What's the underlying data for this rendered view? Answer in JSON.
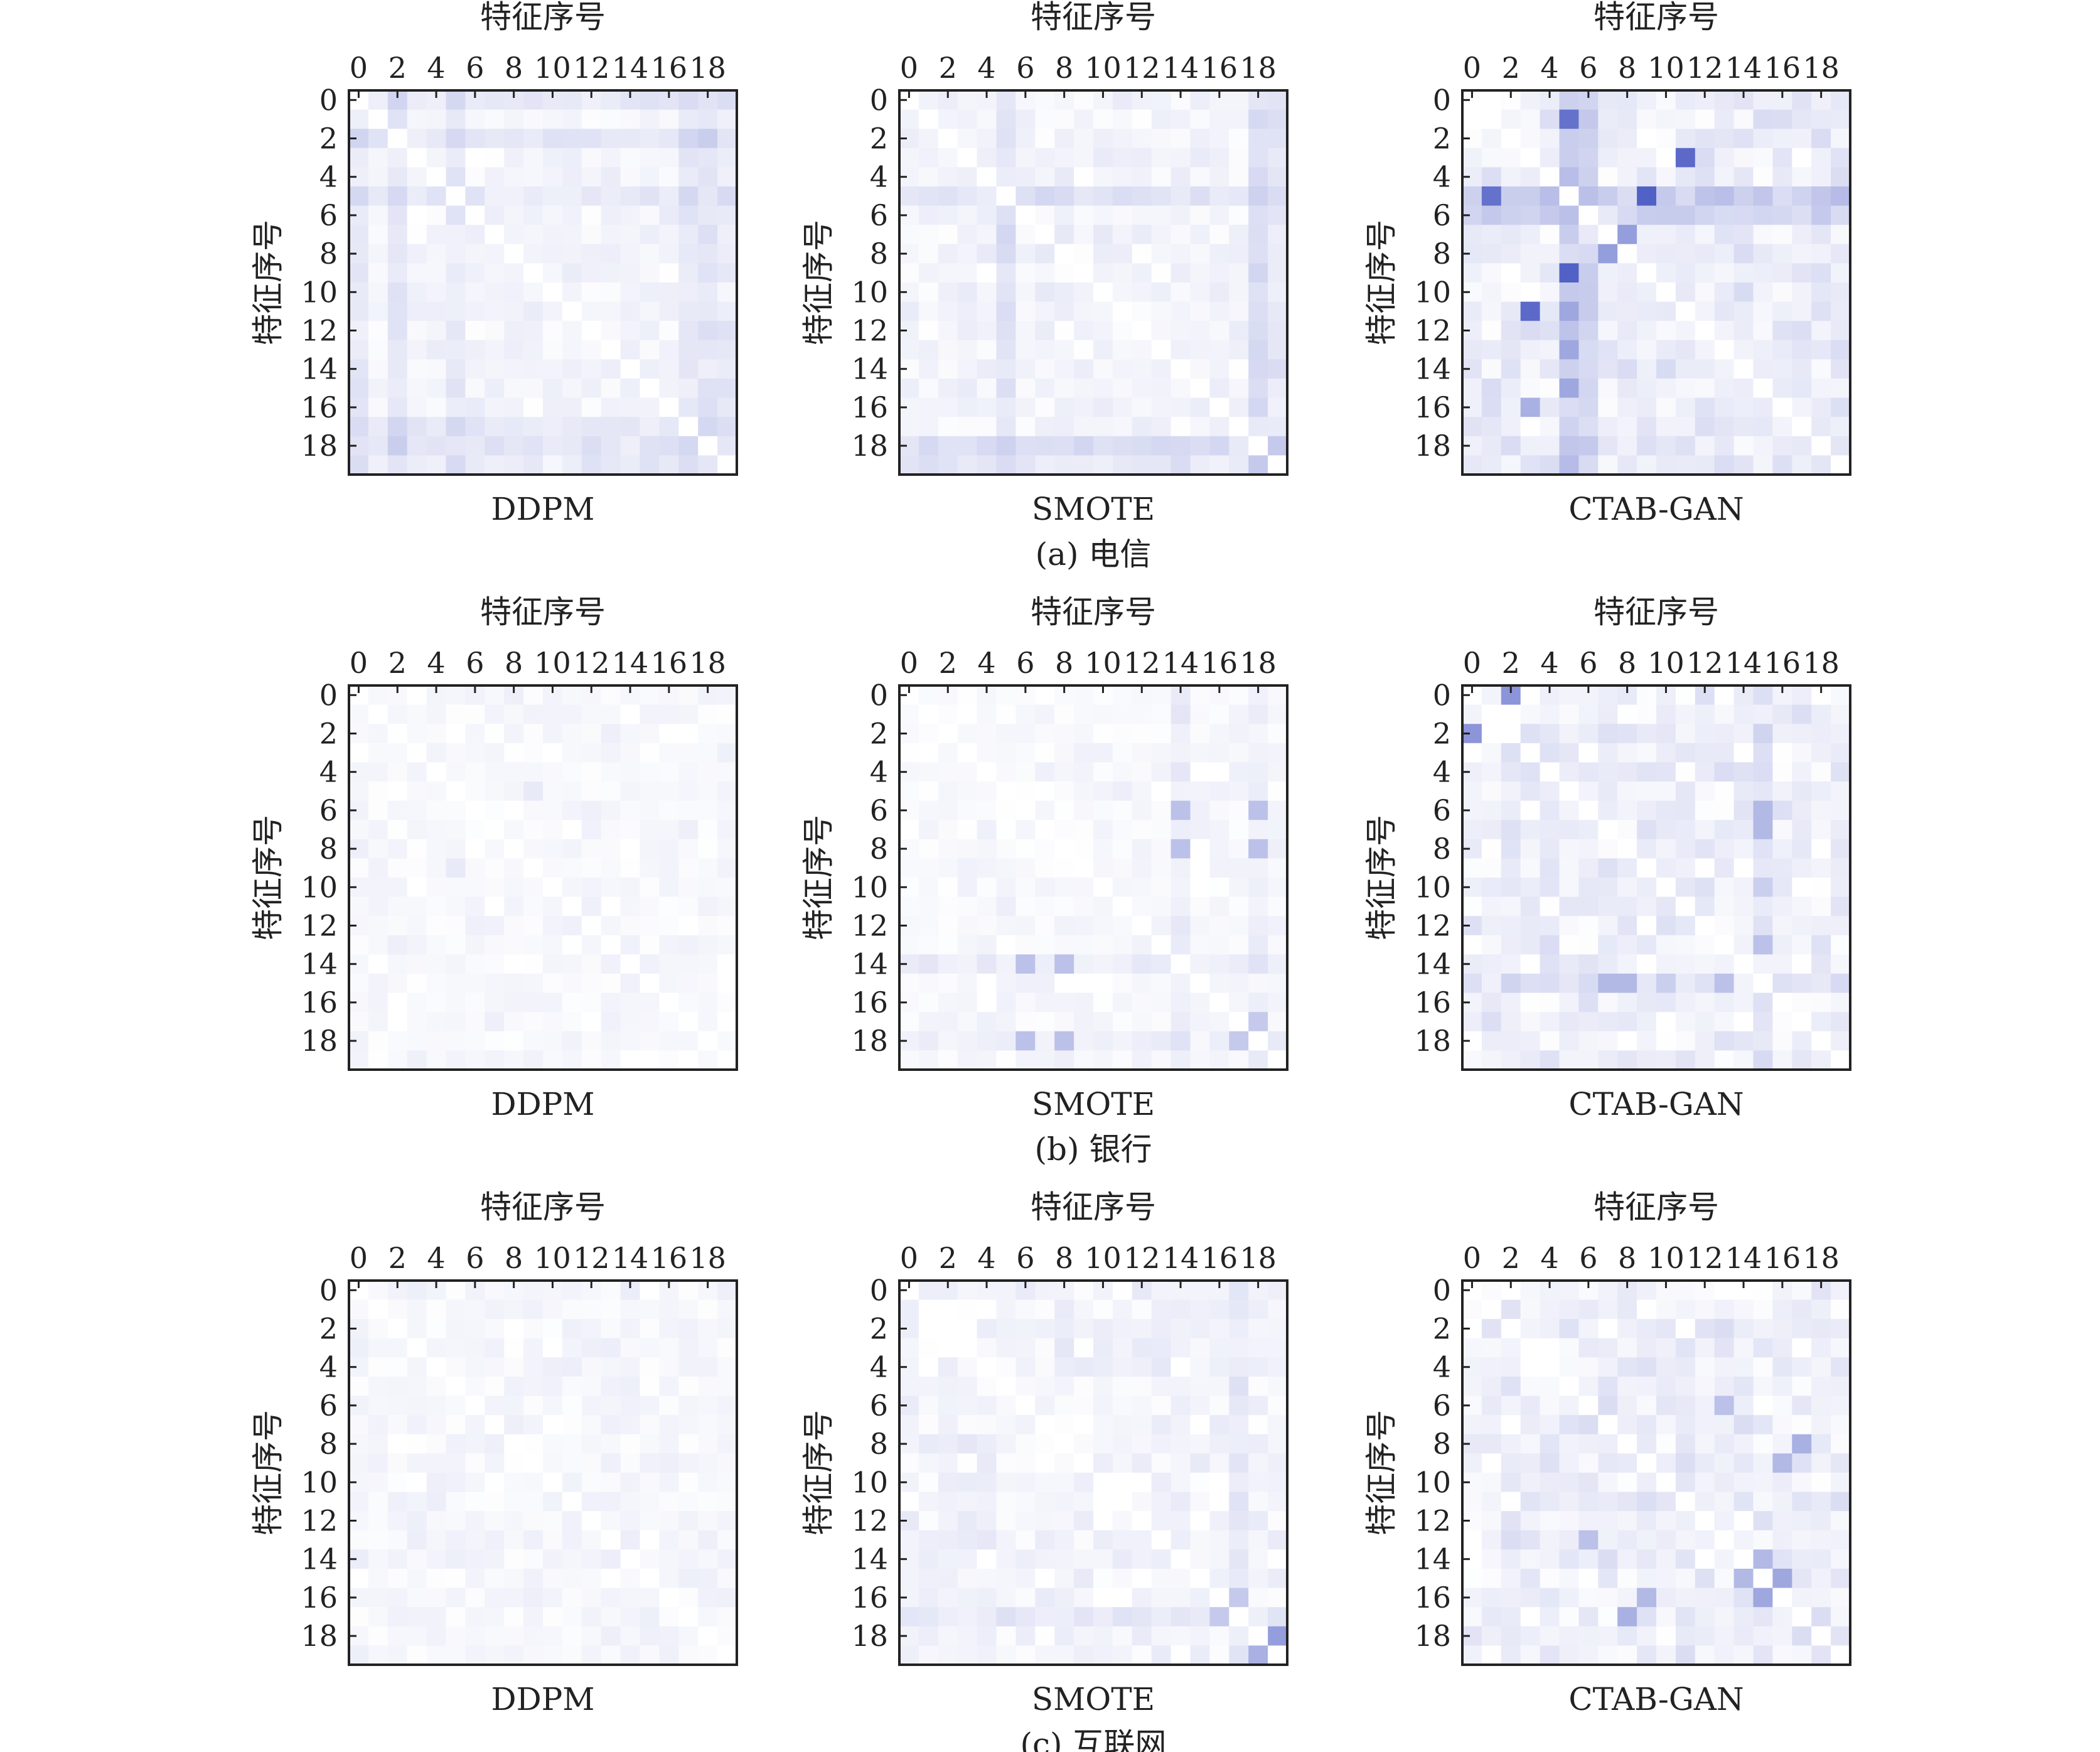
{
  "figure": {
    "axis_title": "特征序号",
    "tick_labels": [
      "0",
      "2",
      "4",
      "6",
      "8",
      "10",
      "12",
      "14",
      "16",
      "18"
    ],
    "rows": [
      {
        "caption": "(a) 电信",
        "panels": [
          "DDPM",
          "SMOTE",
          "CTAB-GAN"
        ]
      },
      {
        "caption": "(b) 银行",
        "panels": [
          "DDPM",
          "SMOTE",
          "CTAB-GAN"
        ]
      },
      {
        "caption": "(c) 互联网",
        "panels": [
          "DDPM",
          "SMOTE",
          "CTAB-GAN"
        ]
      }
    ]
  },
  "colors": {
    "low": "#ffffff",
    "high": "#3f4fbf",
    "frame": "#222222"
  },
  "chart_data": [
    {
      "type": "heatmap",
      "dataset": "(a) 电信",
      "method": "DDPM",
      "size": 20,
      "seed": 11,
      "base": 0.07,
      "noise": 0.05,
      "bands": [
        [
          0,
          0.1
        ],
        [
          2,
          0.09
        ],
        [
          5,
          0.08
        ],
        [
          17,
          0.09
        ],
        [
          18,
          0.1
        ],
        [
          19,
          0.06
        ]
      ],
      "spots": [],
      "xlabel": "特征序号",
      "ylabel": "特征序号",
      "xticks": [
        0,
        2,
        4,
        6,
        8,
        10,
        12,
        14,
        16,
        18
      ],
      "yticks": [
        0,
        2,
        4,
        6,
        8,
        10,
        12,
        14,
        16,
        18
      ]
    },
    {
      "type": "heatmap",
      "dataset": "(a) 电信",
      "method": "SMOTE",
      "size": 20,
      "seed": 23,
      "base": 0.08,
      "noise": 0.06,
      "bands": [
        [
          5,
          0.12
        ],
        [
          18,
          0.17
        ],
        [
          19,
          0.08
        ]
      ],
      "spots": [
        [
          19,
          18,
          0.3
        ],
        [
          18,
          19,
          0.3
        ]
      ],
      "xlabel": "特征序号",
      "ylabel": "特征序号",
      "xticks": [
        0,
        2,
        4,
        6,
        8,
        10,
        12,
        14,
        16,
        18
      ],
      "yticks": [
        0,
        2,
        4,
        6,
        8,
        10,
        12,
        14,
        16,
        18
      ]
    },
    {
      "type": "heatmap",
      "dataset": "(a) 电信",
      "method": "CTAB-GAN",
      "size": 20,
      "seed": 37,
      "base": 0.12,
      "noise": 0.14,
      "bands": [
        [
          5,
          0.22
        ],
        [
          6,
          0.18
        ]
      ],
      "spots": [
        [
          1,
          5,
          0.8
        ],
        [
          5,
          1,
          0.8
        ],
        [
          3,
          11,
          0.85
        ],
        [
          11,
          3,
          0.85
        ],
        [
          4,
          9,
          0.15
        ],
        [
          5,
          9,
          0.9
        ],
        [
          9,
          5,
          0.9
        ],
        [
          7,
          8,
          0.55
        ],
        [
          8,
          7,
          0.55
        ],
        [
          6,
          4,
          0.3
        ],
        [
          11,
          5,
          0.5
        ],
        [
          13,
          5,
          0.5
        ],
        [
          15,
          5,
          0.5
        ],
        [
          16,
          3,
          0.45
        ]
      ],
      "xlabel": "特征序号",
      "ylabel": "特征序号",
      "xticks": [
        0,
        2,
        4,
        6,
        8,
        10,
        12,
        14,
        16,
        18
      ],
      "yticks": [
        0,
        2,
        4,
        6,
        8,
        10,
        12,
        14,
        16,
        18
      ]
    },
    {
      "type": "heatmap",
      "dataset": "(b) 银行",
      "method": "DDPM",
      "size": 20,
      "seed": 41,
      "base": 0.05,
      "noise": 0.06,
      "bands": [],
      "spots": [
        [
          5,
          9,
          0.12
        ],
        [
          9,
          5,
          0.12
        ]
      ],
      "xlabel": "特征序号",
      "ylabel": "特征序号",
      "xticks": [
        0,
        2,
        4,
        6,
        8,
        10,
        12,
        14,
        16,
        18
      ],
      "yticks": [
        0,
        2,
        4,
        6,
        8,
        10,
        12,
        14,
        16,
        18
      ]
    },
    {
      "type": "heatmap",
      "dataset": "(b) 银行",
      "method": "SMOTE",
      "size": 20,
      "seed": 53,
      "base": 0.05,
      "noise": 0.07,
      "bands": [
        [
          14,
          0.06
        ],
        [
          18,
          0.05
        ]
      ],
      "spots": [
        [
          6,
          14,
          0.35
        ],
        [
          14,
          6,
          0.35
        ],
        [
          8,
          14,
          0.35
        ],
        [
          14,
          8,
          0.35
        ],
        [
          6,
          18,
          0.35
        ],
        [
          18,
          6,
          0.35
        ],
        [
          8,
          18,
          0.35
        ],
        [
          18,
          8,
          0.35
        ],
        [
          17,
          18,
          0.3
        ],
        [
          18,
          17,
          0.3
        ]
      ],
      "xlabel": "特征序号",
      "ylabel": "特征序号",
      "xticks": [
        0,
        2,
        4,
        6,
        8,
        10,
        12,
        14,
        16,
        18
      ],
      "yticks": [
        0,
        2,
        4,
        6,
        8,
        10,
        12,
        14,
        16,
        18
      ]
    },
    {
      "type": "heatmap",
      "dataset": "(b) 银行",
      "method": "CTAB-GAN",
      "size": 20,
      "seed": 67,
      "base": 0.11,
      "noise": 0.13,
      "bands": [
        [
          15,
          0.12
        ]
      ],
      "spots": [
        [
          0,
          2,
          0.6
        ],
        [
          2,
          0,
          0.6
        ],
        [
          6,
          15,
          0.4
        ],
        [
          7,
          15,
          0.4
        ],
        [
          15,
          7,
          0.4
        ],
        [
          15,
          8,
          0.4
        ],
        [
          13,
          15,
          0.35
        ],
        [
          15,
          13,
          0.35
        ]
      ],
      "xlabel": "特征序号",
      "ylabel": "特征序号",
      "xticks": [
        0,
        2,
        4,
        6,
        8,
        10,
        12,
        14,
        16,
        18
      ],
      "yticks": [
        0,
        2,
        4,
        6,
        8,
        10,
        12,
        14,
        16,
        18
      ]
    },
    {
      "type": "heatmap",
      "dataset": "(c) 互联网",
      "method": "DDPM",
      "size": 20,
      "seed": 71,
      "base": 0.06,
      "noise": 0.06,
      "bands": [],
      "spots": [],
      "xlabel": "特征序号",
      "ylabel": "特征序号",
      "xticks": [
        0,
        2,
        4,
        6,
        8,
        10,
        12,
        14,
        16,
        18
      ],
      "yticks": [
        0,
        2,
        4,
        6,
        8,
        10,
        12,
        14,
        16,
        18
      ]
    },
    {
      "type": "heatmap",
      "dataset": "(c) 互联网",
      "method": "SMOTE",
      "size": 20,
      "seed": 83,
      "base": 0.08,
      "noise": 0.09,
      "bands": [
        [
          17,
          0.07
        ]
      ],
      "spots": [
        [
          18,
          19,
          0.55
        ],
        [
          19,
          18,
          0.45
        ],
        [
          16,
          17,
          0.3
        ],
        [
          17,
          16,
          0.3
        ]
      ],
      "xlabel": "特征序号",
      "ylabel": "特征序号",
      "xticks": [
        0,
        2,
        4,
        6,
        8,
        10,
        12,
        14,
        16,
        18
      ],
      "yticks": [
        0,
        2,
        4,
        6,
        8,
        10,
        12,
        14,
        16,
        18
      ]
    },
    {
      "type": "heatmap",
      "dataset": "(c) 互联网",
      "method": "CTAB-GAN",
      "size": 20,
      "seed": 97,
      "base": 0.1,
      "noise": 0.13,
      "bands": [],
      "spots": [
        [
          15,
          16,
          0.5
        ],
        [
          16,
          15,
          0.5
        ],
        [
          8,
          17,
          0.45
        ],
        [
          17,
          8,
          0.45
        ],
        [
          9,
          16,
          0.4
        ],
        [
          16,
          9,
          0.4
        ],
        [
          6,
          13,
          0.35
        ],
        [
          13,
          6,
          0.35
        ],
        [
          15,
          14,
          0.4
        ],
        [
          14,
          15,
          0.4
        ]
      ],
      "xlabel": "特征序号",
      "ylabel": "特征序号",
      "xticks": [
        0,
        2,
        4,
        6,
        8,
        10,
        12,
        14,
        16,
        18
      ],
      "yticks": [
        0,
        2,
        4,
        6,
        8,
        10,
        12,
        14,
        16,
        18
      ]
    }
  ]
}
